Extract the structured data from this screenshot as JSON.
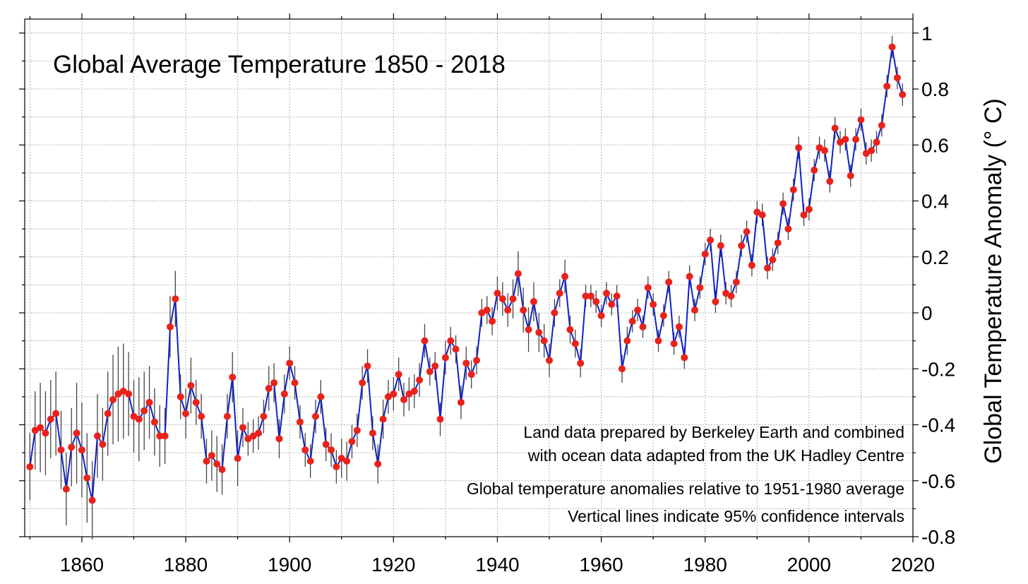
{
  "chart_data": {
    "type": "line",
    "title": "Global Average Temperature 1850 - 2018",
    "xlabel": "",
    "ylabel": "Global Temperature Anomaly (° C)",
    "xlim": [
      1849,
      2020
    ],
    "ylim": [
      -0.8,
      1.05
    ],
    "x_ticks": [
      1860,
      1880,
      1900,
      1920,
      1940,
      1960,
      1980,
      2000,
      2020
    ],
    "y_ticks": [
      1,
      0.8,
      0.6,
      0.4,
      0.2,
      0,
      -0.2,
      -0.4,
      -0.6,
      -0.8
    ],
    "x_tick_labels": [
      "1860",
      "1880",
      "1900",
      "1920",
      "1940",
      "1960",
      "1980",
      "2000",
      "2020"
    ],
    "y_tick_labels": [
      "1",
      "0.8",
      "0.6",
      "0.4",
      "0.2",
      "0",
      "-0.2",
      "-0.4",
      "-0.6",
      "-0.8"
    ],
    "grid": true,
    "annotations": [
      "Land data prepared by Berkeley Earth and combined",
      "with ocean data adapted from the UK Hadley Centre",
      "Global temperature anomalies relative to 1951-1980 average",
      "Vertical lines indicate 95% confidence intervals"
    ],
    "colors": {
      "line": "#1020c8",
      "marker": "#e8231c",
      "error_bar": "#444444"
    },
    "series": [
      {
        "x_start": 1850,
        "x_end": 2018,
        "values": [
          -0.55,
          -0.42,
          -0.41,
          -0.43,
          -0.38,
          -0.36,
          -0.49,
          -0.63,
          -0.48,
          -0.43,
          -0.49,
          -0.59,
          -0.67,
          -0.44,
          -0.47,
          -0.36,
          -0.31,
          -0.29,
          -0.28,
          -0.29,
          -0.37,
          -0.38,
          -0.35,
          -0.32,
          -0.39,
          -0.44,
          -0.44,
          -0.05,
          0.05,
          -0.3,
          -0.36,
          -0.26,
          -0.32,
          -0.37,
          -0.53,
          -0.51,
          -0.54,
          -0.56,
          -0.37,
          -0.23,
          -0.52,
          -0.41,
          -0.45,
          -0.44,
          -0.43,
          -0.37,
          -0.27,
          -0.25,
          -0.45,
          -0.29,
          -0.18,
          -0.25,
          -0.39,
          -0.49,
          -0.53,
          -0.37,
          -0.3,
          -0.47,
          -0.49,
          -0.55,
          -0.52,
          -0.53,
          -0.46,
          -0.42,
          -0.25,
          -0.19,
          -0.43,
          -0.54,
          -0.38,
          -0.3,
          -0.29,
          -0.22,
          -0.31,
          -0.29,
          -0.28,
          -0.24,
          -0.1,
          -0.21,
          -0.19,
          -0.38,
          -0.16,
          -0.1,
          -0.13,
          -0.32,
          -0.18,
          -0.22,
          -0.17,
          0.0,
          0.01,
          -0.03,
          0.07,
          0.05,
          0.01,
          0.05,
          0.14,
          0.01,
          -0.06,
          0.04,
          -0.07,
          -0.1,
          -0.17,
          0.0,
          0.07,
          0.13,
          -0.06,
          -0.11,
          -0.18,
          0.06,
          0.06,
          0.04,
          -0.01,
          0.07,
          0.03,
          0.06,
          -0.2,
          -0.1,
          -0.03,
          0.01,
          -0.05,
          0.09,
          0.03,
          -0.1,
          -0.01,
          0.11,
          -0.11,
          -0.05,
          -0.16,
          0.13,
          0.01,
          0.09,
          0.21,
          0.26,
          0.04,
          0.24,
          0.07,
          0.06,
          0.11,
          0.24,
          0.29,
          0.17,
          0.36,
          0.35,
          0.16,
          0.19,
          0.25,
          0.39,
          0.3,
          0.44,
          0.59,
          0.35,
          0.37,
          0.51,
          0.59,
          0.58,
          0.47,
          0.66,
          0.61,
          0.62,
          0.49,
          0.62,
          0.69,
          0.57,
          0.58,
          0.61,
          0.67,
          0.81,
          0.95,
          0.84,
          0.78
        ],
        "confidence_95_halfwidth": [
          0.12,
          0.14,
          0.16,
          0.15,
          0.14,
          0.15,
          0.14,
          0.13,
          0.14,
          0.18,
          0.17,
          0.16,
          0.14,
          0.15,
          0.13,
          0.15,
          0.16,
          0.17,
          0.17,
          0.15,
          0.13,
          0.15,
          0.14,
          0.13,
          0.12,
          0.11,
          0.1,
          0.11,
          0.1,
          0.08,
          0.09,
          0.1,
          0.08,
          0.08,
          0.08,
          0.09,
          0.1,
          0.09,
          0.08,
          0.09,
          0.1,
          0.07,
          0.06,
          0.06,
          0.06,
          0.06,
          0.08,
          0.07,
          0.07,
          0.07,
          0.06,
          0.06,
          0.06,
          0.06,
          0.06,
          0.06,
          0.06,
          0.06,
          0.06,
          0.06,
          0.07,
          0.07,
          0.06,
          0.06,
          0.06,
          0.06,
          0.06,
          0.07,
          0.07,
          0.06,
          0.06,
          0.06,
          0.06,
          0.06,
          0.06,
          0.06,
          0.06,
          0.05,
          0.05,
          0.06,
          0.06,
          0.05,
          0.05,
          0.06,
          0.06,
          0.05,
          0.05,
          0.05,
          0.05,
          0.05,
          0.06,
          0.06,
          0.06,
          0.07,
          0.08,
          0.08,
          0.08,
          0.07,
          0.07,
          0.06,
          0.06,
          0.05,
          0.05,
          0.06,
          0.05,
          0.05,
          0.05,
          0.04,
          0.04,
          0.04,
          0.04,
          0.04,
          0.04,
          0.04,
          0.05,
          0.05,
          0.04,
          0.04,
          0.04,
          0.04,
          0.04,
          0.04,
          0.04,
          0.04,
          0.04,
          0.04,
          0.04,
          0.04,
          0.04,
          0.04,
          0.04,
          0.04,
          0.04,
          0.04,
          0.04,
          0.04,
          0.04,
          0.04,
          0.04,
          0.04,
          0.04,
          0.04,
          0.04,
          0.04,
          0.04,
          0.04,
          0.04,
          0.04,
          0.04,
          0.04,
          0.04,
          0.04,
          0.04,
          0.04,
          0.04,
          0.04,
          0.04,
          0.04,
          0.04,
          0.04,
          0.04,
          0.04,
          0.04,
          0.04,
          0.04,
          0.04,
          0.04,
          0.04,
          0.04
        ]
      }
    ]
  }
}
